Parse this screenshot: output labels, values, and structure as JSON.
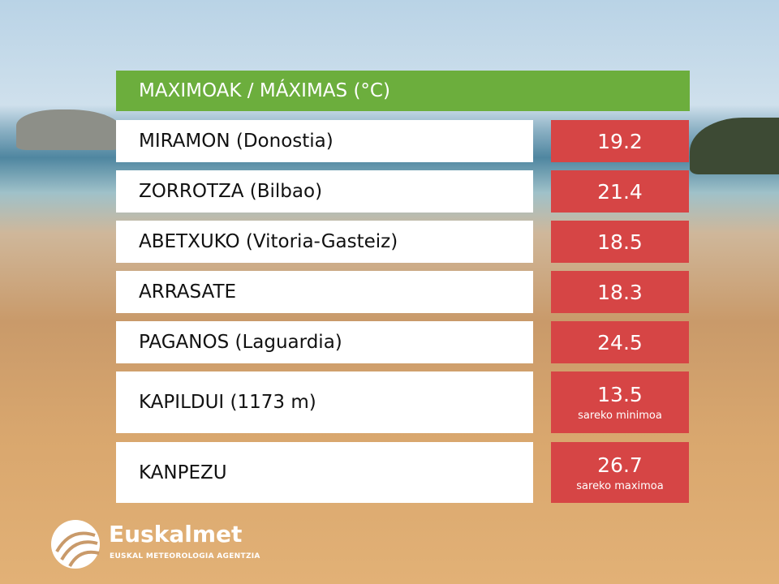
{
  "header": {
    "title": "MAXIMOAK / MÁXIMAS (°C)"
  },
  "table": {
    "rows": [
      {
        "station": "MIRAMON (Donostia)",
        "value": 19.2
      },
      {
        "station": "ZORROTZA (Bilbao)",
        "value": 21.4
      },
      {
        "station": "ABETXUKO (Vitoria-Gasteiz)",
        "value": 18.5
      },
      {
        "station": "ARRASATE",
        "value": 18.3
      },
      {
        "station": "PAGANOS (Laguardia)",
        "value": 24.5
      },
      {
        "station": "KAPILDUI (1173 m)",
        "value": 13.5,
        "note": "sareko minimoa"
      },
      {
        "station": "KANPEZU",
        "value": 26.7,
        "note": "sareko maximoa"
      }
    ]
  },
  "logo": {
    "name": "Euskalmet",
    "subtitle": "EUSKAL METEOROLOGIA AGENTZIA"
  }
}
